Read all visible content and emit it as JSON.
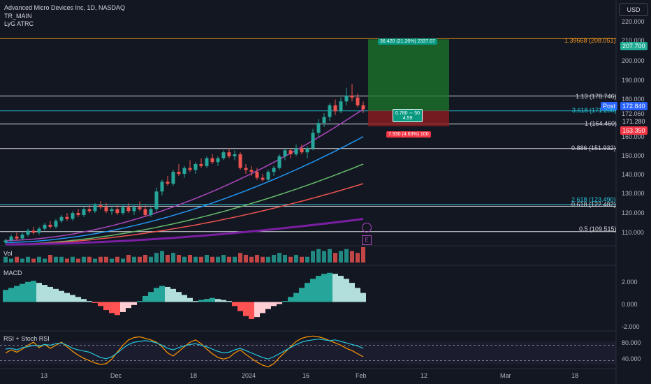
{
  "header": {
    "symbol": "Advanced Micro Devices Inc, 1D, NASDAQ",
    "indicator_1": "TR_MAIN",
    "indicator_2": "LyG ATRC",
    "currency": "USD"
  },
  "panes": {
    "volume_title": "Vol",
    "macd_title": "MACD",
    "rsi_title": "RSI + Stoch RSI"
  },
  "price_axis": {
    "ticks": [
      "220.000",
      "210.000",
      "200.000",
      "190.000",
      "180.000",
      "172.060",
      "160.000",
      "150.000",
      "140.000",
      "130.000",
      "120.000",
      "110.000"
    ],
    "tags": {
      "target": "207.700",
      "post_label": "Post",
      "post": "172.840",
      "last": "171.280",
      "stop": "163.350"
    },
    "colors": {
      "target": "#22ab94",
      "post": "#2962ff",
      "last": "#131722",
      "stop": "#f23645"
    }
  },
  "macd_axis": [
    "2.000",
    "0.000",
    "-2.000"
  ],
  "rsi_axis": [
    "80.000",
    "40.000"
  ],
  "time_axis": [
    "13",
    "Dec",
    "18",
    "2024",
    "16",
    "Feb",
    "12",
    "Mar",
    "18"
  ],
  "fib_levels": [
    {
      "label": "1.39668 (208.051)",
      "price": 208.051,
      "color": "#f59a23"
    },
    {
      "label": "1.13 (178.746)",
      "price": 178.746,
      "color": "#ffffff"
    },
    {
      "label": "3.618 (171.200)",
      "price": 171.2,
      "color": "#26c6da"
    },
    {
      "label": "1 (164.460)",
      "price": 164.46,
      "color": "#ffffff"
    },
    {
      "label": "0.886 (151.932)",
      "price": 151.932,
      "color": "#ffffff"
    },
    {
      "label": "2.618 (123.490)",
      "price": 123.49,
      "color": "#26c6da"
    },
    {
      "label": "0.618 (122.482)",
      "price": 122.482,
      "color": "#ffffff"
    },
    {
      "label": "0.5 (109.515)",
      "price": 109.515,
      "color": "#ffffff"
    }
  ],
  "position": {
    "profit_label": "36.420 (21.26%) 2337.07",
    "ratio_label": "0.780 ∼ 50",
    "ratio_sub": "4.59",
    "loss_label": "7.930 (4.63%) 100",
    "entry": 171.28,
    "target": 207.7,
    "stop": 163.35
  },
  "markers": {
    "earnings": "E"
  },
  "chart_data": {
    "type": "candlestick",
    "title": "Advanced Micro Devices Inc, 1D, NASDAQ",
    "y_range": [
      103,
      226
    ],
    "candles": [
      [
        104,
        106,
        103,
        105
      ],
      [
        105,
        108,
        104,
        107
      ],
      [
        107,
        109,
        105,
        106
      ],
      [
        106,
        109,
        105,
        108
      ],
      [
        108,
        111,
        107,
        110
      ],
      [
        110,
        112,
        108,
        109
      ],
      [
        109,
        112,
        108,
        111
      ],
      [
        111,
        114,
        110,
        113
      ],
      [
        113,
        115,
        111,
        112
      ],
      [
        112,
        116,
        111,
        115
      ],
      [
        115,
        118,
        114,
        117
      ],
      [
        117,
        119,
        115,
        116
      ],
      [
        116,
        120,
        115,
        119
      ],
      [
        119,
        121,
        117,
        118
      ],
      [
        118,
        122,
        117,
        121
      ],
      [
        121,
        123,
        119,
        120
      ],
      [
        120,
        124,
        119,
        123
      ],
      [
        123,
        125,
        121,
        122
      ],
      [
        122,
        124,
        119,
        120
      ],
      [
        120,
        122,
        118,
        121
      ],
      [
        121,
        123,
        118,
        119
      ],
      [
        119,
        123,
        118,
        122
      ],
      [
        122,
        124,
        119,
        120
      ],
      [
        120,
        123,
        118,
        122
      ],
      [
        122,
        125,
        120,
        121
      ],
      [
        121,
        123,
        117,
        118
      ],
      [
        118,
        122,
        117,
        121
      ],
      [
        121,
        132,
        120,
        130
      ],
      [
        130,
        136,
        128,
        135
      ],
      [
        135,
        138,
        133,
        134
      ],
      [
        134,
        141,
        133,
        140
      ],
      [
        140,
        144,
        138,
        139
      ],
      [
        139,
        143,
        137,
        142
      ],
      [
        142,
        146,
        140,
        141
      ],
      [
        141,
        145,
        139,
        144
      ],
      [
        144,
        147,
        142,
        143
      ],
      [
        143,
        148,
        142,
        147
      ],
      [
        147,
        149,
        144,
        145
      ],
      [
        145,
        148,
        143,
        147
      ],
      [
        147,
        151,
        146,
        150
      ],
      [
        150,
        152,
        147,
        148
      ],
      [
        148,
        151,
        146,
        149
      ],
      [
        149,
        150,
        141,
        142
      ],
      [
        142,
        144,
        139,
        141
      ],
      [
        141,
        143,
        138,
        140
      ],
      [
        140,
        142,
        136,
        137
      ],
      [
        137,
        139,
        135,
        136
      ],
      [
        136,
        141,
        135,
        140
      ],
      [
        140,
        143,
        138,
        142
      ],
      [
        142,
        149,
        141,
        148
      ],
      [
        148,
        152,
        146,
        151
      ],
      [
        151,
        152,
        147,
        149
      ],
      [
        149,
        154,
        148,
        152
      ],
      [
        152,
        154,
        149,
        150
      ],
      [
        150,
        153,
        147,
        152
      ],
      [
        152,
        162,
        151,
        160
      ],
      [
        160,
        167,
        158,
        165
      ],
      [
        165,
        170,
        163,
        168
      ],
      [
        168,
        175,
        166,
        174
      ],
      [
        174,
        177,
        169,
        171
      ],
      [
        171,
        178,
        170,
        176
      ],
      [
        176,
        183,
        174,
        179
      ],
      [
        179,
        185,
        176,
        178
      ],
      [
        178,
        180,
        173,
        174
      ],
      [
        174,
        176,
        170,
        172
      ]
    ],
    "ema_series": [
      {
        "name": "EMA fast",
        "color": "#ab47bc",
        "start": 105,
        "end": 172
      },
      {
        "name": "EMA 20",
        "color": "#2196f3",
        "start": 104,
        "end": 158
      },
      {
        "name": "EMA 50",
        "color": "#66bb6a",
        "start": 103,
        "end": 144
      },
      {
        "name": "EMA 100",
        "color": "#ef5350",
        "start": 103,
        "end": 134
      },
      {
        "name": "EMA 200",
        "color": "#7b1fa2",
        "start": 103,
        "end": 116
      }
    ],
    "volume": [
      3,
      2,
      3,
      2,
      3,
      2,
      3,
      2,
      4,
      3,
      3,
      2,
      3,
      2,
      3,
      3,
      2,
      3,
      3,
      2,
      3,
      2,
      4,
      3,
      3,
      4,
      3,
      5,
      6,
      4,
      5,
      4,
      3,
      4,
      3,
      3,
      4,
      3,
      3,
      4,
      3,
      3,
      5,
      4,
      3,
      4,
      3,
      3,
      4,
      5,
      4,
      3,
      4,
      3,
      3,
      6,
      7,
      6,
      7,
      5,
      6,
      7,
      6,
      5,
      8
    ],
    "macd_hist": [
      1.2,
      1.4,
      1.6,
      1.8,
      2,
      2.1,
      1.9,
      1.7,
      1.5,
      1.3,
      1.1,
      0.9,
      0.7,
      0.5,
      0.3,
      0.1,
      -0.1,
      -0.4,
      -0.8,
      -1.1,
      -1.3,
      -1.0,
      -0.6,
      -0.3,
      0.1,
      0.6,
      1.0,
      1.4,
      1.6,
      1.5,
      1.3,
      1.0,
      0.7,
      0.4,
      0.1,
      0.2,
      0.3,
      0.4,
      0.3,
      0.2,
      0.1,
      -0.4,
      -0.9,
      -1.4,
      -1.7,
      -1.5,
      -1.1,
      -0.7,
      -0.4,
      -0.2,
      0.1,
      0.5,
      0.9,
      1.4,
      1.9,
      2.3,
      2.6,
      2.8,
      2.9,
      2.8,
      2.6,
      2.3,
      1.9,
      1.4,
      0.9
    ],
    "macd_range": [
      -2.6,
      3.3
    ],
    "rsi": [
      60,
      62,
      58,
      64,
      66,
      70,
      68,
      72,
      70,
      74,
      76,
      70,
      62,
      58,
      55,
      52,
      45,
      38,
      35,
      40,
      50,
      62,
      72,
      78,
      80,
      82,
      80,
      76,
      70,
      62,
      58,
      64,
      68,
      72,
      74,
      70,
      66,
      60,
      54,
      50,
      52,
      58,
      62,
      56,
      50,
      44,
      38,
      34,
      40,
      48,
      56,
      64,
      72,
      78,
      82,
      84,
      86,
      84,
      82,
      84,
      80,
      76,
      72,
      68,
      62
    ],
    "stoch": [
      50,
      58,
      52,
      60,
      70,
      78,
      64,
      72,
      62,
      70,
      78,
      66,
      54,
      44,
      36,
      30,
      24,
      20,
      22,
      34,
      52,
      70,
      84,
      90,
      92,
      88,
      84,
      78,
      66,
      50,
      42,
      54,
      66,
      78,
      84,
      74,
      60,
      48,
      38,
      34,
      38,
      50,
      58,
      46,
      36,
      26,
      18,
      14,
      22,
      38,
      52,
      66,
      80,
      88,
      92,
      94,
      92,
      88,
      82,
      76,
      70,
      62,
      56,
      48,
      40
    ],
    "rsi_range": [
      20,
      100
    ],
    "x_labels": [
      "13",
      "Dec",
      "18",
      "2024",
      "16",
      "Feb",
      "12",
      "Mar",
      "18"
    ]
  }
}
